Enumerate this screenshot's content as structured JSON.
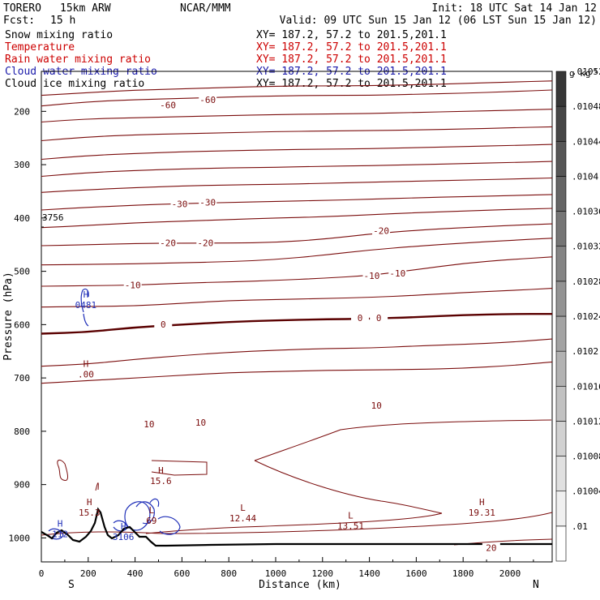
{
  "header": {
    "model": "TORERO",
    "resolution": "15km ARW",
    "center": "NCAR/MMM",
    "init": "Init: 18 UTC Sat 14 Jan 12",
    "fcst_label": "Fcst:",
    "fcst_value": "15 h",
    "valid": "Valid: 09 UTC Sun 15 Jan 12 (06 LST Sun 15 Jan 12)"
  },
  "fields": [
    {
      "label": "Snow mixing ratio",
      "xy": "XY= 187.2, 57.2 to 201.5,201.1",
      "color": "#000000"
    },
    {
      "label": "Temperature",
      "xy": "XY= 187.2, 57.2 to 201.5,201.1",
      "color": "#cc0000"
    },
    {
      "label": "Rain water mixing ratio",
      "xy": "XY= 187.2, 57.2 to 201.5,201.1",
      "color": "#cc0000"
    },
    {
      "label": "Cloud water mixing ratio",
      "xy": "XY= 187.2, 57.2 to 201.5,201.1",
      "color": "#1a1aaa"
    },
    {
      "label": "Cloud ice mixing ratio",
      "xy": "XY= 187.2, 57.2 to 201.5,201.1",
      "color": "#000000"
    }
  ],
  "colors": {
    "temperature": "#7a0c0c",
    "cloud_water": "#1f2fb8",
    "terrain": "#000000"
  },
  "chart_data": {
    "type": "cross-section contour",
    "xlabel": "Distance (km)",
    "ylabel": "Pressure (hPa)",
    "xlim": [
      0,
      2180
    ],
    "ylim": [
      1045,
      125
    ],
    "xticks": [
      "0",
      "200",
      "400",
      "600",
      "800",
      "1000",
      "1200",
      "1400",
      "1600",
      "1800",
      "2000"
    ],
    "yticks": [
      "200",
      "300",
      "400",
      "500",
      "600",
      "700",
      "800",
      "900",
      "1000"
    ],
    "left_end": "S",
    "right_end": "N",
    "marker_label": "3756",
    "colorbar": {
      "unit": "g kg",
      "unit_exp": "-1",
      "labels": [
        ".01",
        ".01004",
        ".01008",
        ".01012",
        ".01016",
        ".0102",
        ".01024",
        ".01028",
        ".01032",
        ".01036",
        ".0104",
        ".01044",
        ".01048",
        ".01052"
      ]
    },
    "temperature_contour_labels": [
      {
        "text": "-60",
        "x": 540,
        "p": 190
      },
      {
        "text": "-60",
        "x": 710,
        "p": 180
      },
      {
        "text": "-30",
        "x": 590,
        "p": 375
      },
      {
        "text": "-30",
        "x": 710,
        "p": 372
      },
      {
        "text": "-20",
        "x": 540,
        "p": 448
      },
      {
        "text": "-20",
        "x": 700,
        "p": 448
      },
      {
        "text": "-20",
        "x": 1450,
        "p": 425
      },
      {
        "text": "-10",
        "x": 390,
        "p": 527
      },
      {
        "text": "-10",
        "x": 1410,
        "p": 510
      },
      {
        "text": "-10",
        "x": 1520,
        "p": 505
      },
      {
        "text": "0",
        "x": 520,
        "p": 601
      },
      {
        "text": "0",
        "x": 1360,
        "p": 589
      },
      {
        "text": "0",
        "x": 1440,
        "p": 589
      },
      {
        "text": "10",
        "x": 460,
        "p": 788
      },
      {
        "text": "10",
        "x": 680,
        "p": 785
      },
      {
        "text": "10",
        "x": 1430,
        "p": 753
      },
      {
        "text": "20",
        "x": 1920,
        "p": 1020
      }
    ],
    "extrema": [
      {
        "kind": "H",
        "value": "0481",
        "x": 190,
        "p": 555,
        "field": "cloud_water"
      },
      {
        "kind": "H",
        "value": ".00",
        "x": 190,
        "p": 685,
        "field": "rain"
      },
      {
        "kind": "H",
        "value": "15.6",
        "x": 510,
        "p": 885,
        "field": "temperature"
      },
      {
        "kind": "H",
        "value": "15.3",
        "x": 205,
        "p": 945,
        "field": "temperature"
      },
      {
        "kind": "L",
        "value": "12.44",
        "x": 860,
        "p": 955,
        "field": "temperature"
      },
      {
        "kind": "L",
        "value": "13.51",
        "x": 1320,
        "p": 970,
        "field": "temperature"
      },
      {
        "kind": "H",
        "value": "19.31",
        "x": 1880,
        "p": 945,
        "field": "temperature"
      },
      {
        "kind": "L",
        "value": "69",
        "x": 470,
        "p": 960,
        "field": "temperature"
      },
      {
        "kind": "H",
        "value": "112",
        "x": 80,
        "p": 985,
        "field": "cloud_water"
      },
      {
        "kind": "H",
        "value": "3106",
        "x": 350,
        "p": 990,
        "field": "cloud_water"
      }
    ],
    "isotherms_p_at_x": {
      "x": [
        0,
        200,
        400,
        600,
        800,
        1000,
        1200,
        1400,
        1600,
        1800,
        2000,
        2180
      ],
      "levels": [
        {
          "t": -60,
          "p": [
            170,
            165,
            160,
            158,
            155,
            153,
            152,
            152,
            150,
            148,
            145,
            143
          ]
        },
        {
          "t": -60,
          "p": [
            190,
            182,
            178,
            176,
            173,
            171,
            170,
            170,
            168,
            166,
            163,
            160
          ]
        },
        {
          "t": -50,
          "p": [
            220,
            214,
            212,
            210,
            208,
            206,
            205,
            204,
            202,
            200,
            198,
            196
          ]
        },
        {
          "t": -50,
          "p": [
            255,
            248,
            244,
            242,
            240,
            238,
            237,
            236,
            235,
            233,
            231,
            229
          ]
        },
        {
          "t": -45,
          "p": [
            290,
            283,
            279,
            276,
            274,
            272,
            271,
            270,
            268,
            266,
            264,
            262
          ]
        },
        {
          "t": -40,
          "p": [
            322,
            315,
            311,
            308,
            306,
            305,
            303,
            302,
            300,
            298,
            296,
            294
          ]
        },
        {
          "t": -35,
          "p": [
            352,
            347,
            343,
            340,
            338,
            337,
            335,
            333,
            331,
            329,
            327,
            325
          ]
        },
        {
          "t": -30,
          "p": [
            385,
            380,
            376,
            373,
            371,
            369,
            367,
            365,
            362,
            360,
            358,
            356
          ]
        },
        {
          "t": -25,
          "p": [
            418,
            414,
            409,
            406,
            403,
            400,
            398,
            394,
            390,
            387,
            384,
            382
          ]
        },
        {
          "t": -20,
          "p": [
            452,
            450,
            448,
            447,
            447,
            446,
            440,
            430,
            423,
            418,
            414,
            411
          ]
        },
        {
          "t": -15,
          "p": [
            488,
            487,
            486,
            484,
            482,
            478,
            470,
            460,
            453,
            447,
            442,
            438
          ]
        },
        {
          "t": -10,
          "p": [
            528,
            527,
            526,
            522,
            520,
            517,
            513,
            508,
            497,
            485,
            478,
            473
          ]
        },
        {
          "t": -5,
          "p": [
            567,
            566,
            565,
            560,
            555,
            553,
            551,
            549,
            545,
            540,
            536,
            532
          ]
        },
        {
          "t": 0,
          "p": [
            617,
            614,
            605,
            600,
            595,
            592,
            590,
            589,
            586,
            582,
            580,
            580
          ]
        },
        {
          "t": 5,
          "p": [
            678,
            674,
            665,
            658,
            652,
            648,
            645,
            644,
            640,
            637,
            633,
            627
          ]
        },
        {
          "t": 8,
          "p": [
            710,
            705,
            700,
            695,
            690,
            688,
            686,
            685,
            684,
            682,
            677,
            670
          ]
        }
      ]
    }
  }
}
